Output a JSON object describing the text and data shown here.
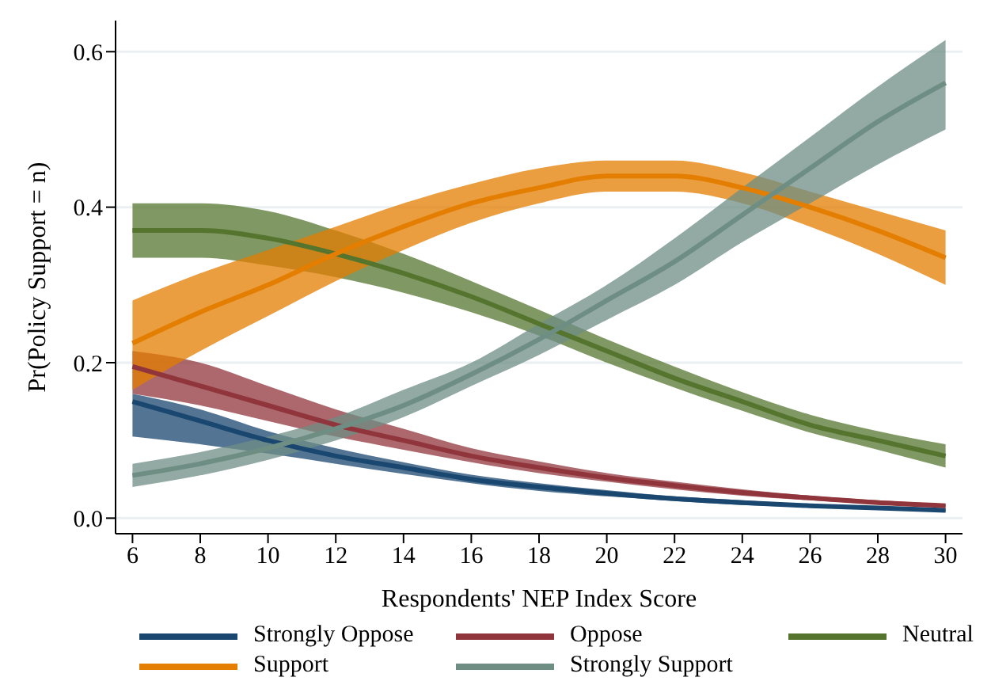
{
  "chart_data": {
    "type": "line",
    "xlabel": "Respondents' NEP Index Score",
    "ylabel": "Pr(Policy Support = n)",
    "x": [
      6,
      8,
      10,
      12,
      14,
      16,
      18,
      20,
      22,
      24,
      26,
      28,
      30
    ],
    "xlim": [
      5.5,
      30.5
    ],
    "xticks": [
      6,
      8,
      10,
      12,
      14,
      16,
      18,
      20,
      22,
      24,
      26,
      28,
      30
    ],
    "ylim": [
      -0.02,
      0.64
    ],
    "yticks": [
      {
        "value": 0,
        "label": "0.0"
      },
      {
        "value": 0.2,
        "label": "0.2"
      },
      {
        "value": 0.4,
        "label": "0.4"
      },
      {
        "value": 0.6,
        "label": "0.6"
      }
    ],
    "grid": "y",
    "legend": "bottom",
    "marker": "none",
    "line_style": "solid",
    "series": [
      {
        "name": "Strongly Oppose",
        "color": "#1a476f",
        "values": [
          0.15,
          0.125,
          0.1,
          0.08,
          0.065,
          0.05,
          0.04,
          0.032,
          0.025,
          0.02,
          0.016,
          0.013,
          0.01
        ],
        "lower": [
          0.105,
          0.095,
          0.083,
          0.07,
          0.057,
          0.045,
          0.035,
          0.028,
          0.022,
          0.017,
          0.014,
          0.011,
          0.008
        ],
        "upper": [
          0.16,
          0.14,
          0.112,
          0.09,
          0.072,
          0.056,
          0.045,
          0.036,
          0.028,
          0.023,
          0.018,
          0.015,
          0.012
        ]
      },
      {
        "name": "Oppose",
        "color": "#90353b",
        "values": [
          0.195,
          0.17,
          0.145,
          0.12,
          0.1,
          0.08,
          0.065,
          0.052,
          0.042,
          0.033,
          0.026,
          0.02,
          0.016
        ],
        "lower": [
          0.16,
          0.145,
          0.125,
          0.105,
          0.088,
          0.072,
          0.058,
          0.047,
          0.037,
          0.029,
          0.023,
          0.018,
          0.014
        ],
        "upper": [
          0.215,
          0.2,
          0.17,
          0.14,
          0.115,
          0.09,
          0.073,
          0.058,
          0.047,
          0.037,
          0.029,
          0.023,
          0.018
        ]
      },
      {
        "name": "Neutral",
        "color": "#55752f",
        "values": [
          0.37,
          0.37,
          0.36,
          0.34,
          0.315,
          0.285,
          0.25,
          0.215,
          0.18,
          0.15,
          0.12,
          0.1,
          0.08
        ],
        "lower": [
          0.335,
          0.335,
          0.325,
          0.31,
          0.29,
          0.265,
          0.235,
          0.2,
          0.168,
          0.138,
          0.11,
          0.088,
          0.065
        ],
        "upper": [
          0.405,
          0.405,
          0.395,
          0.37,
          0.34,
          0.305,
          0.268,
          0.23,
          0.195,
          0.162,
          0.133,
          0.112,
          0.095
        ]
      },
      {
        "name": "Support",
        "color": "#e37e00",
        "values": [
          0.225,
          0.265,
          0.3,
          0.34,
          0.375,
          0.405,
          0.425,
          0.44,
          0.44,
          0.425,
          0.4,
          0.37,
          0.335
        ],
        "lower": [
          0.165,
          0.215,
          0.26,
          0.305,
          0.345,
          0.38,
          0.405,
          0.42,
          0.42,
          0.405,
          0.375,
          0.34,
          0.3
        ],
        "upper": [
          0.28,
          0.315,
          0.345,
          0.375,
          0.405,
          0.43,
          0.45,
          0.46,
          0.46,
          0.445,
          0.42,
          0.395,
          0.37
        ]
      },
      {
        "name": "Strongly Support",
        "color": "#6e8e84",
        "values": [
          0.055,
          0.07,
          0.09,
          0.115,
          0.145,
          0.185,
          0.23,
          0.28,
          0.33,
          0.39,
          0.45,
          0.51,
          0.56
        ],
        "lower": [
          0.04,
          0.055,
          0.075,
          0.1,
          0.13,
          0.17,
          0.21,
          0.255,
          0.3,
          0.355,
          0.405,
          0.455,
          0.5
        ],
        "upper": [
          0.07,
          0.085,
          0.105,
          0.13,
          0.165,
          0.2,
          0.25,
          0.3,
          0.36,
          0.425,
          0.49,
          0.555,
          0.615
        ]
      }
    ]
  }
}
